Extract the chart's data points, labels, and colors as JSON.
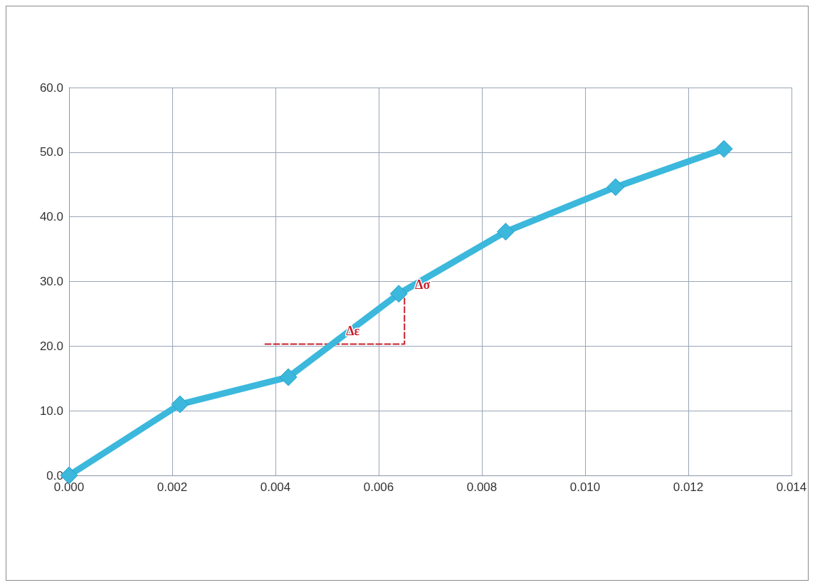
{
  "chart_data": {
    "type": "line",
    "marker": "diamond",
    "line_style": "solid",
    "grid": true,
    "xlim": [
      0,
      0.014
    ],
    "xticks": [
      {
        "value": 0,
        "label": "0.000"
      },
      0.002,
      0.004,
      0.006,
      0.008,
      {
        "value": 0.01,
        "label": "0.010"
      },
      0.012,
      0.014
    ],
    "ylim": [
      0,
      60
    ],
    "yticks": [
      {
        "value": 0,
        "label": "0.0"
      },
      {
        "value": 10,
        "label": "10.0"
      },
      {
        "value": 20,
        "label": "20.0"
      },
      {
        "value": 30,
        "label": "30.0"
      },
      {
        "value": 40,
        "label": "40.0"
      },
      {
        "value": 50,
        "label": "50.0"
      },
      {
        "value": 60,
        "label": "60.0"
      }
    ],
    "series": [
      {
        "color": "#3bb8dc",
        "x": [
          0,
          0.00215,
          0.00425,
          0.00639,
          0.00846,
          0.01059,
          0.01269
        ],
        "values": [
          0,
          11.0,
          15.2,
          28.1,
          37.7,
          44.6,
          50.5
        ]
      },
      {
        "type": "line",
        "color": "#c8202c",
        "marker": "none",
        "line_style": "dashed",
        "x": [
          0.0038,
          0.0065,
          0.0065
        ],
        "values": [
          20.3,
          20.3,
          27.5
        ]
      }
    ],
    "annotations": [
      {
        "text": "Δσ",
        "x": 0.00685,
        "y": 29.5
      },
      {
        "text": "Δε",
        "x": 0.0055,
        "y": 22.3
      }
    ]
  }
}
